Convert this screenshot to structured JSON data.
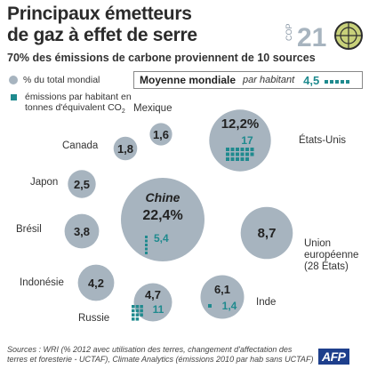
{
  "header": {
    "title_line1": "Principaux émetteurs",
    "title_line2": "de gaz à effet de serre",
    "subtitle": "70% des émissions de carbone proviennent de 10 sources"
  },
  "logo": {
    "cop": "COP",
    "number": "21"
  },
  "legend": {
    "share_label": "% du total mondial",
    "percap_label": "émissions par habitant en tonnes d'équivalent CO",
    "percap_sub": "2"
  },
  "world_average": {
    "label": "Moyenne mondiale",
    "sub": "par habitant",
    "value": "4,5"
  },
  "colors": {
    "bubble": "#a7b4bf",
    "accent": "#1f8a8e",
    "text": "#2a2a2a",
    "afp": "#1e3f8c"
  },
  "chart_data": {
    "type": "bubble",
    "title": "Principaux émetteurs de gaz à effet de serre",
    "size_metric": "% du total mondial",
    "secondary_metric": "émissions par habitant en tonnes d'équivalent CO2",
    "series": [
      {
        "name": "Chine",
        "share_pct": 22.4,
        "share_label": "22,4%",
        "per_capita": 5.4,
        "per_capita_label": "5,4"
      },
      {
        "name": "États-Unis",
        "share_pct": 12.2,
        "share_label": "12,2%",
        "per_capita": 17,
        "per_capita_label": "17"
      },
      {
        "name": "Union européenne (28 États)",
        "share_pct": 8.7,
        "share_label": "8,7"
      },
      {
        "name": "Inde",
        "share_pct": 6.1,
        "share_label": "6,1",
        "per_capita": 1.4,
        "per_capita_label": "1,4"
      },
      {
        "name": "Russie",
        "share_pct": 4.7,
        "share_label": "4,7",
        "per_capita": 11,
        "per_capita_label": "11"
      },
      {
        "name": "Indonésie",
        "share_pct": 4.2,
        "share_label": "4,2"
      },
      {
        "name": "Brésil",
        "share_pct": 3.8,
        "share_label": "3,8"
      },
      {
        "name": "Japon",
        "share_pct": 2.5,
        "share_label": "2,5"
      },
      {
        "name": "Canada",
        "share_pct": 1.8,
        "share_label": "1,8"
      },
      {
        "name": "Mexique",
        "share_pct": 1.6,
        "share_label": "1,6"
      }
    ]
  },
  "source": {
    "text": "Sources : WRI (% 2012 avec utilisation des terres, changement d'affectation des terres et foresterie - UCTAF), Climate Analytics (émissions 2010 par hab sans UCTAF)"
  },
  "agency": "AFP"
}
